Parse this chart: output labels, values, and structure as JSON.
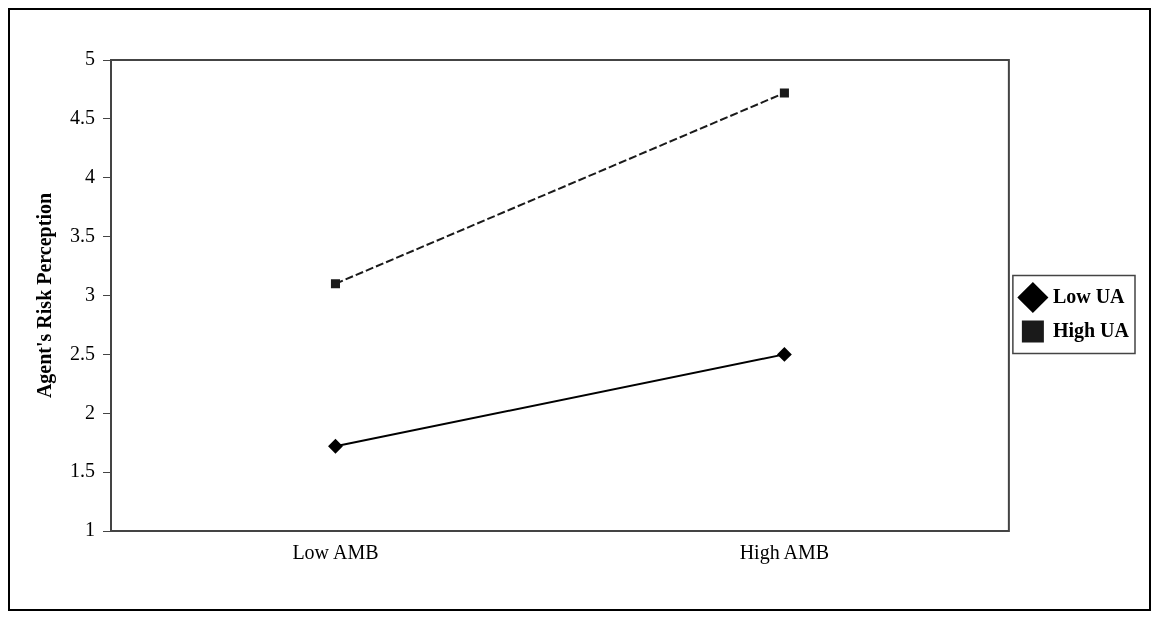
{
  "chart_data": {
    "type": "line",
    "ylabel": "Agent's Risk Perception",
    "categories": [
      "Low AMB",
      "High AMB"
    ],
    "series": [
      {
        "name": "Low UA",
        "color": "#000000",
        "values": [
          1.72,
          2.5
        ],
        "marker": "diamond",
        "line_style": "solid"
      },
      {
        "name": "High UA",
        "color": "#1a1a1a",
        "values": [
          3.1,
          4.72
        ],
        "marker": "square",
        "line_style": "dashed"
      }
    ],
    "ylim": [
      1,
      5
    ],
    "yticks": [
      1,
      1.5,
      2,
      2.5,
      3,
      3.5,
      4,
      4.5,
      5
    ],
    "grid": false,
    "legend": "right"
  }
}
